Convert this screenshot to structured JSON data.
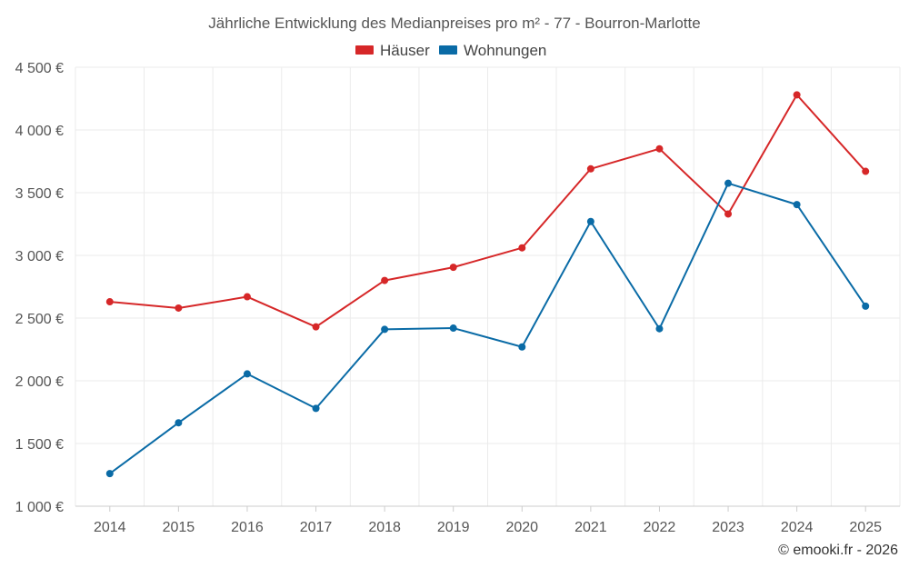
{
  "chart_data": {
    "type": "line",
    "title": "Jährliche Entwicklung des Medianpreises pro m² - 77 - Bourron-Marlotte",
    "categories": [
      "2014",
      "2015",
      "2016",
      "2017",
      "2018",
      "2019",
      "2020",
      "2021",
      "2022",
      "2023",
      "2024",
      "2025"
    ],
    "series": [
      {
        "name": "Häuser",
        "color": "#d62728",
        "values": [
          2630,
          2580,
          2670,
          2430,
          2800,
          2905,
          3060,
          3690,
          3850,
          3330,
          4280,
          3670
        ]
      },
      {
        "name": "Wohnungen",
        "color": "#0a6ba6",
        "values": [
          1260,
          1665,
          2055,
          1780,
          2410,
          2420,
          2270,
          3270,
          2415,
          3575,
          3405,
          2595
        ]
      }
    ],
    "ylim": [
      1000,
      4500
    ],
    "yticks": [
      1000,
      1500,
      2000,
      2500,
      3000,
      3500,
      4000,
      4500
    ],
    "ytick_labels": [
      "1 000 €",
      "1 500 €",
      "2 000 €",
      "2 500 €",
      "3 000 €",
      "3 500 €",
      "4 000 €",
      "4 500 €"
    ],
    "xlabel": "",
    "ylabel": "",
    "grid": true,
    "legend_position": "top-center"
  },
  "credit": "© emooki.fr - 2026"
}
